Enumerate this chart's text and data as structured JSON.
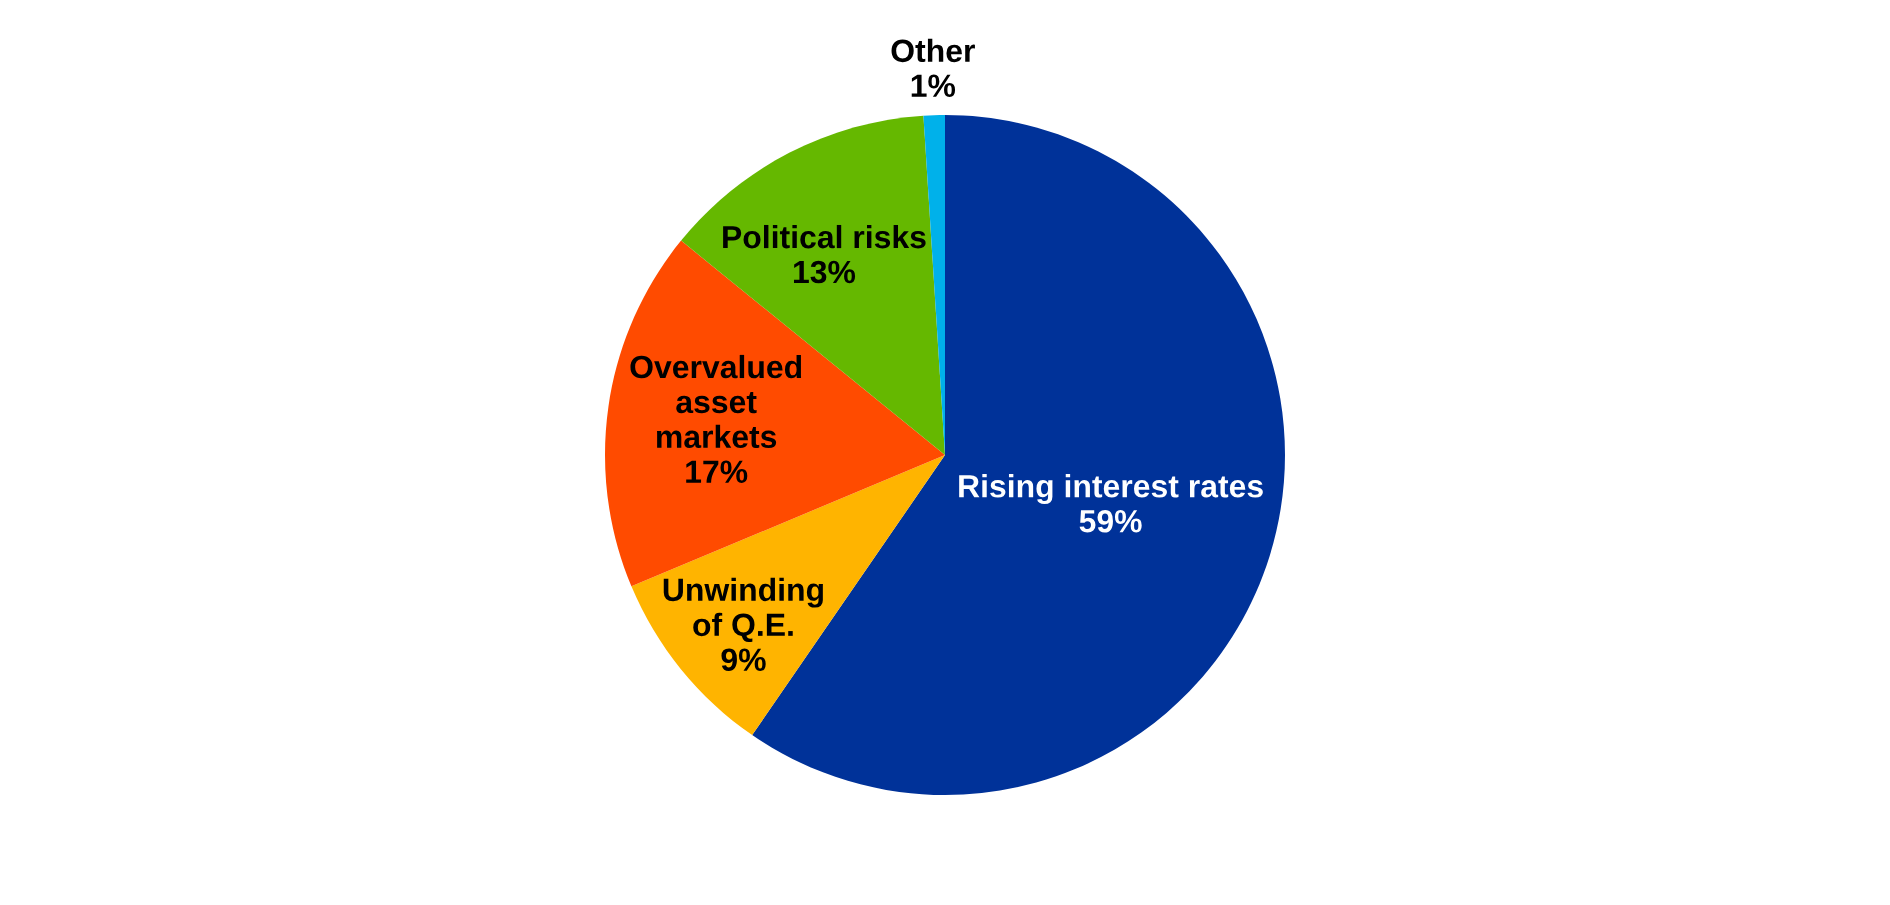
{
  "chart_data": {
    "type": "pie",
    "categories": [
      "Rising interest rates",
      "Unwinding\nof Q.E.",
      "Overvalued\nasset\nmarkets",
      "Political risks",
      "Other"
    ],
    "values": [
      59,
      9,
      17,
      13,
      1
    ],
    "value_labels": [
      "59%",
      "9%",
      "17%",
      "13%",
      "1%"
    ],
    "colors": [
      "#003299",
      "#ffb400",
      "#ff4b00",
      "#65b800",
      "#00b1ea"
    ]
  }
}
